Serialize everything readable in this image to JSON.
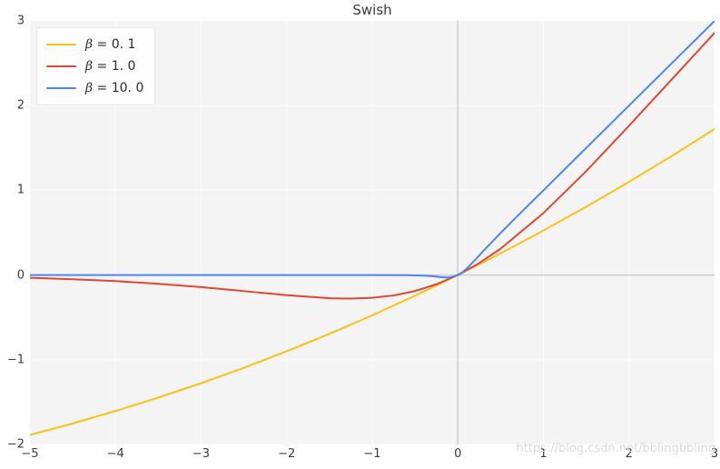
{
  "figure": {
    "watermark": "https://blog.csdn.net/bblingbbling"
  },
  "colors": {
    "plot_background": "#f4f4f5",
    "gridline": "#fcfcfc",
    "zero_line": "#cbcbcb",
    "text": "#3b3b3b",
    "series_beta_0_1": "#fac314",
    "series_beta_1_0": "#e04630",
    "series_beta_10_0": "#4d86f0"
  },
  "chart_data": {
    "type": "line",
    "title": "Swish",
    "xlabel": "",
    "ylabel": "",
    "xlim": [
      -5,
      3
    ],
    "ylim": [
      -2,
      3
    ],
    "grid": true,
    "zero_lines": true,
    "xticks": [
      -5,
      -4,
      -3,
      -2,
      -1,
      0,
      1,
      2,
      3
    ],
    "xtick_labels": [
      "−5",
      "−4",
      "−3",
      "−2",
      "−1",
      "0",
      "1",
      "2",
      "3"
    ],
    "yticks": [
      -2,
      -1,
      0,
      1,
      2,
      3
    ],
    "ytick_labels": [
      "−2",
      "−1",
      "0",
      "1",
      "2",
      "3"
    ],
    "legend": {
      "position": "upper-left",
      "equals": "=",
      "items": [
        {
          "id": "beta-0-1",
          "symbol": "β",
          "value": "0. 1",
          "color": "#fac314"
        },
        {
          "id": "beta-1-0",
          "symbol": "β",
          "value": "1. 0",
          "color": "#e04630"
        },
        {
          "id": "beta-10-0",
          "symbol": "β",
          "value": "10. 0",
          "color": "#4d86f0"
        }
      ]
    },
    "series": [
      {
        "name": "β = 0. 1",
        "id": "beta-0-1",
        "color": "#fac314",
        "x": [
          -5,
          -4.5,
          -4,
          -3.5,
          -3,
          -2.5,
          -2,
          -1.5,
          -1,
          -0.5,
          0,
          0.5,
          1,
          1.5,
          2,
          2.5,
          3
        ],
        "y": [
          -1.888,
          -1.752,
          -1.605,
          -1.447,
          -1.277,
          -1.095,
          -0.9,
          -0.694,
          -0.475,
          -0.244,
          0,
          0.256,
          0.525,
          0.806,
          1.1,
          1.405,
          1.723
        ]
      },
      {
        "name": "β = 1. 0",
        "id": "beta-1-0",
        "color": "#e04630",
        "x": [
          -5,
          -4.5,
          -4,
          -3.5,
          -3,
          -2.5,
          -2,
          -1.5,
          -1.25,
          -1,
          -0.75,
          -0.5,
          -0.25,
          0,
          0.25,
          0.5,
          1,
          1.5,
          2,
          2.5,
          3
        ],
        "y": [
          -0.033,
          -0.05,
          -0.072,
          -0.103,
          -0.142,
          -0.19,
          -0.238,
          -0.274,
          -0.278,
          -0.269,
          -0.241,
          -0.189,
          -0.109,
          0,
          0.141,
          0.311,
          0.731,
          1.226,
          1.762,
          2.31,
          2.858
        ]
      },
      {
        "name": "β = 10. 0",
        "id": "beta-10-0",
        "color": "#4d86f0",
        "x": [
          -5,
          -4,
          -3,
          -2,
          -1,
          -0.6,
          -0.4,
          -0.3,
          -0.2,
          -0.15,
          -0.13,
          -0.1,
          -0.05,
          0,
          0.05,
          0.1,
          0.2,
          0.3,
          0.5,
          0.75,
          1,
          1.5,
          2,
          2.5,
          3
        ],
        "y": [
          0,
          0,
          0,
          0,
          0,
          -0.001,
          -0.007,
          -0.014,
          -0.024,
          -0.027,
          -0.028,
          -0.027,
          -0.019,
          0,
          0.031,
          0.073,
          0.176,
          0.286,
          0.497,
          0.75,
          1,
          1.5,
          2,
          2.5,
          3
        ]
      }
    ]
  }
}
